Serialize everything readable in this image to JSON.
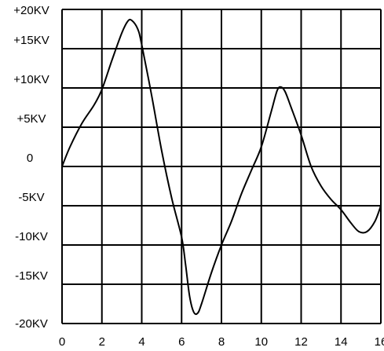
{
  "chart_data": {
    "type": "line",
    "title": "",
    "xlabel": "",
    "ylabel": "",
    "xlim": [
      0,
      16
    ],
    "ylim": [
      -20,
      20
    ],
    "grid": true,
    "x_ticks": [
      0,
      2,
      4,
      6,
      8,
      10,
      12,
      14,
      16
    ],
    "x_tick_labels": [
      "0",
      "2",
      "4",
      "6",
      "8",
      "10",
      "12",
      "14",
      "16"
    ],
    "y_ticks": [
      20,
      15,
      10,
      5,
      0,
      -5,
      -10,
      -15,
      -20
    ],
    "y_tick_labels": [
      "+20KV",
      "+15KV",
      "+10KV",
      "+5KV",
      "0",
      "-5KV",
      "-10KV",
      "-15KV",
      "-20KV"
    ],
    "series": [
      {
        "color": "#000000",
        "x": [
          0,
          0.4,
          1.0,
          1.6,
          2.0,
          2.5,
          3.0,
          3.3,
          3.5,
          3.8,
          4.0,
          4.5,
          5.0,
          5.5,
          6.0,
          6.2,
          6.4,
          6.6,
          6.8,
          7.0,
          7.5,
          8.0,
          8.5,
          9.0,
          9.5,
          10.0,
          10.5,
          10.8,
          11.0,
          11.2,
          11.5,
          12.0,
          12.5,
          13.0,
          13.5,
          14.0,
          14.5,
          14.9,
          15.3,
          15.7,
          16.0
        ],
        "y": [
          0,
          2.5,
          5.5,
          7.8,
          9.8,
          13.5,
          17.0,
          18.5,
          18.6,
          17.5,
          15.5,
          9.0,
          2.0,
          -4.0,
          -9.0,
          -12.5,
          -16.5,
          -18.5,
          -18.7,
          -17.5,
          -13.5,
          -10.0,
          -7.0,
          -3.5,
          -0.5,
          2.5,
          7.0,
          9.7,
          10.1,
          9.5,
          7.5,
          4.0,
          0.0,
          -2.5,
          -4.2,
          -5.5,
          -7.2,
          -8.3,
          -8.3,
          -7.0,
          -5.0
        ]
      }
    ]
  }
}
